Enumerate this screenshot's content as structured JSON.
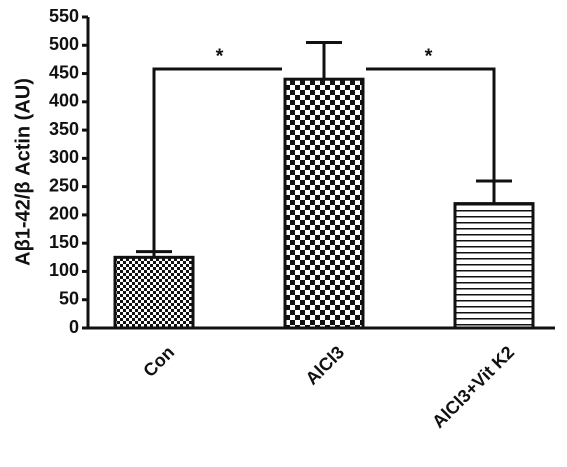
{
  "chart_data": {
    "type": "bar",
    "y_label": "Aβ1-42/β Actin (AU)",
    "categories": [
      "Con",
      "AlCl3",
      "AlCl3+Vit K2"
    ],
    "values": [
      125,
      440,
      220
    ],
    "errors": [
      10,
      65,
      40
    ],
    "ylim": [
      0,
      550
    ],
    "yticks": [
      0,
      50,
      100,
      150,
      200,
      250,
      300,
      350,
      400,
      450,
      500,
      550
    ],
    "annotations": [
      "*",
      "*"
    ]
  }
}
